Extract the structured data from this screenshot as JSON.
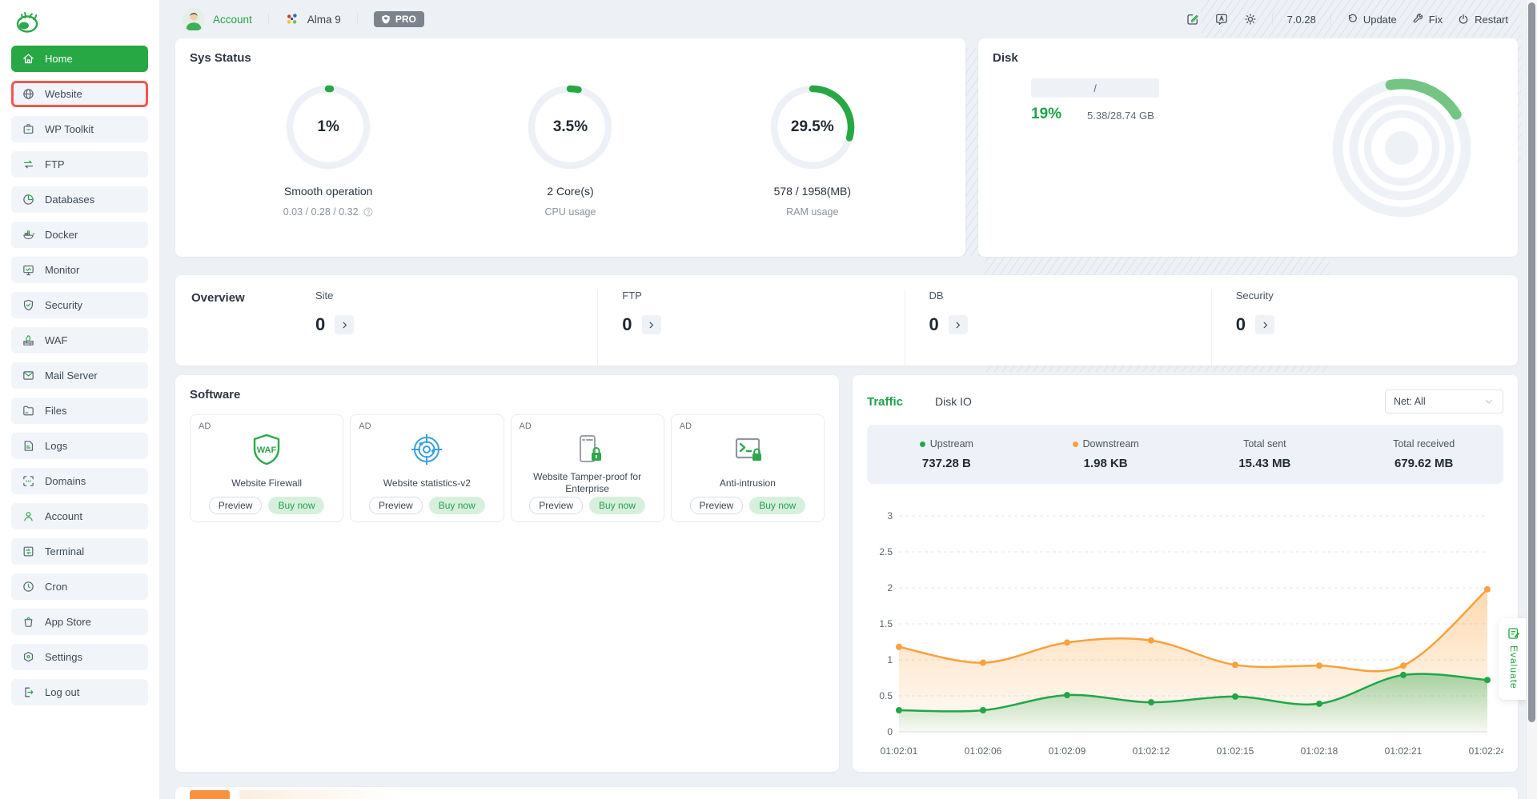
{
  "header": {
    "account_label": "Account",
    "os_name": "Alma 9",
    "pro_label": "PRO",
    "version": "7.0.28",
    "update_label": "Update",
    "fix_label": "Fix",
    "restart_label": "Restart"
  },
  "sidebar": {
    "items": [
      {
        "label": "Home",
        "icon": "home",
        "state": "active"
      },
      {
        "label": "Website",
        "icon": "globe",
        "state": "highlight"
      },
      {
        "label": "WP Toolkit",
        "icon": "wp",
        "state": ""
      },
      {
        "label": "FTP",
        "icon": "ftp",
        "state": ""
      },
      {
        "label": "Databases",
        "icon": "db",
        "state": ""
      },
      {
        "label": "Docker",
        "icon": "docker",
        "state": ""
      },
      {
        "label": "Monitor",
        "icon": "monitor",
        "state": ""
      },
      {
        "label": "Security",
        "icon": "shield",
        "state": ""
      },
      {
        "label": "WAF",
        "icon": "waf",
        "state": ""
      },
      {
        "label": "Mail Server",
        "icon": "mail",
        "state": ""
      },
      {
        "label": "Files",
        "icon": "folder",
        "state": ""
      },
      {
        "label": "Logs",
        "icon": "doc",
        "state": ""
      },
      {
        "label": "Domains",
        "icon": "scan",
        "state": ""
      },
      {
        "label": "Account",
        "icon": "user",
        "state": ""
      },
      {
        "label": "Terminal",
        "icon": "terminal",
        "state": ""
      },
      {
        "label": "Cron",
        "icon": "clock",
        "state": ""
      },
      {
        "label": "App Store",
        "icon": "bag",
        "state": ""
      },
      {
        "label": "Settings",
        "icon": "gear",
        "state": ""
      },
      {
        "label": "Log out",
        "icon": "logout",
        "state": ""
      }
    ]
  },
  "sys_status": {
    "title": "Sys Status",
    "gauges": [
      {
        "percent": 1,
        "label": "1%",
        "line1": "Smooth operation",
        "line2": "0.03 / 0.28 / 0.32",
        "help": true
      },
      {
        "percent": 3.5,
        "label": "3.5%",
        "line1": "2 Core(s)",
        "line2": "CPU usage",
        "help": false
      },
      {
        "percent": 29.5,
        "label": "29.5%",
        "line1": "578 / 1958(MB)",
        "line2": "RAM usage",
        "help": false
      }
    ]
  },
  "disk": {
    "title": "Disk",
    "path": "/",
    "percent_label": "19%",
    "percent": 19,
    "usage": "5.38/28.74 GB"
  },
  "overview": {
    "title": "Overview",
    "items": [
      {
        "label": "Site",
        "count": "0"
      },
      {
        "label": "FTP",
        "count": "0"
      },
      {
        "label": "DB",
        "count": "0"
      },
      {
        "label": "Security",
        "count": "0"
      }
    ]
  },
  "software": {
    "title": "Software",
    "ad_label": "AD",
    "preview_label": "Preview",
    "buy_label": "Buy now",
    "items": [
      {
        "name": "Website Firewall",
        "icon": "waf-shield"
      },
      {
        "name": "Website statistics-v2",
        "icon": "stats-target"
      },
      {
        "name": "Website Tamper-proof for Enterprise",
        "icon": "server-lock"
      },
      {
        "name": "Anti-intrusion",
        "icon": "terminal-lock"
      }
    ]
  },
  "traffic": {
    "tab_traffic": "Traffic",
    "tab_diskio": "Disk IO",
    "net_filter": "Net: All",
    "stats": [
      {
        "label": "Upstream",
        "value": "737.28 B",
        "dot": "#21a649"
      },
      {
        "label": "Downstream",
        "value": "1.98 KB",
        "dot": "#f9a13c"
      },
      {
        "label": "Total sent",
        "value": "15.43 MB",
        "dot": ""
      },
      {
        "label": "Total received",
        "value": "679.62 MB",
        "dot": ""
      }
    ]
  },
  "chart_data": {
    "type": "area",
    "title": "Traffic (network up/down stream over time)",
    "x": [
      "01:02:01",
      "01:02:06",
      "01:02:09",
      "01:02:12",
      "01:02:15",
      "01:02:18",
      "01:02:21",
      "01:02:24"
    ],
    "series": [
      {
        "name": "Upstream",
        "color": "#21a649",
        "values": [
          0.3,
          0.3,
          0.51,
          0.41,
          0.49,
          0.39,
          0.79,
          0.72
        ]
      },
      {
        "name": "Downstream",
        "color": "#f9a13c",
        "values": [
          1.18,
          0.96,
          1.24,
          1.27,
          0.93,
          0.92,
          0.92,
          1.98
        ]
      }
    ],
    "ylim": [
      0,
      3
    ],
    "yticks": [
      0,
      0.5,
      1,
      1.5,
      2,
      2.5,
      3
    ],
    "grid": "dashed horizontal",
    "legend_position": "stats strip above chart"
  },
  "evaluate": {
    "label": "Evaluate"
  },
  "colors": {
    "accent_green": "#21a649",
    "sidebar_active": "#27a844",
    "highlight_red": "#f4564e",
    "orange": "#f9a13c",
    "pro_badge": "#7c838c",
    "page_bg": "#edf0f5",
    "card_bg": "#ffffff",
    "stats_strip_bg": "#eef2f8"
  }
}
